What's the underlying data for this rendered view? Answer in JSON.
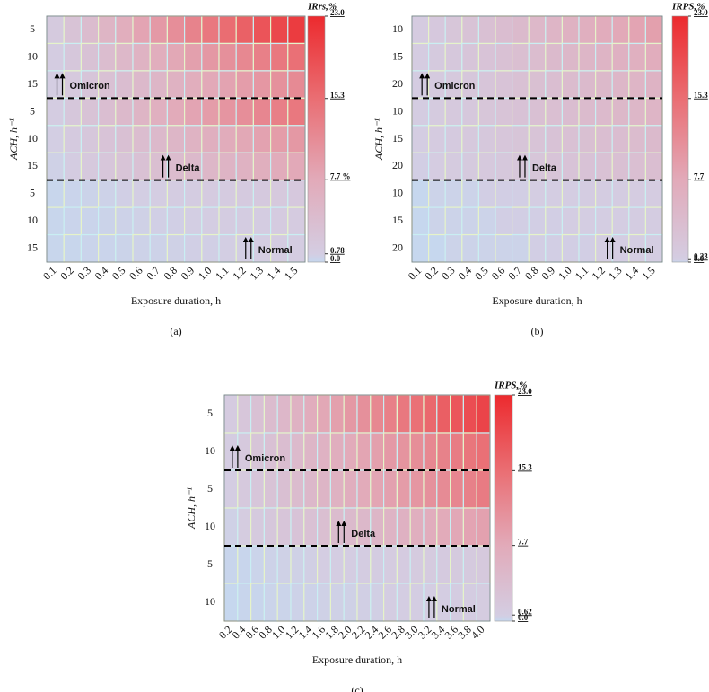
{
  "chart_data": [
    {
      "type": "heatmap",
      "label": "(a)",
      "x_label": "Exposure duration, h",
      "y_label": "ACH, h⁻¹",
      "colorbar_title": "IRrs,%",
      "columns": [
        "0.1",
        "0.2",
        "0.3",
        "0.4",
        "0.5",
        "0.6",
        "0.7",
        "0.8",
        "0.9",
        "1.0",
        "1.1",
        "1.2",
        "1.3",
        "1.4",
        "1.5"
      ],
      "rows": [
        "5",
        "10",
        "15",
        "5",
        "10",
        "15",
        "5",
        "10",
        "15"
      ],
      "annotations": [
        "Omicron",
        "Delta",
        "Normal"
      ],
      "values": [
        [
          1.4,
          2.8,
          4.2,
          5.6,
          7.0,
          8.4,
          9.8,
          11.2,
          12.6,
          14.0,
          15.4,
          16.8,
          18.2,
          19.6,
          21.0
        ],
        [
          1.0,
          2.0,
          3.0,
          4.0,
          5.0,
          6.0,
          7.0,
          8.0,
          9.0,
          10.0,
          11.0,
          12.0,
          13.0,
          14.0,
          15.0
        ],
        [
          0.8,
          1.6,
          2.3,
          3.1,
          3.9,
          4.7,
          5.4,
          6.2,
          7.0,
          7.8,
          8.6,
          9.3,
          10.1,
          10.9,
          11.7
        ],
        [
          0.9,
          1.9,
          2.8,
          3.7,
          4.7,
          5.6,
          6.6,
          7.5,
          8.4,
          9.4,
          10.3,
          11.2,
          12.2,
          13.1,
          14.0
        ],
        [
          0.7,
          1.3,
          2.0,
          2.7,
          3.3,
          4.0,
          4.7,
          5.4,
          6.0,
          6.7,
          7.4,
          8.0,
          8.7,
          9.4,
          10.0
        ],
        [
          0.5,
          1.0,
          1.6,
          2.1,
          2.6,
          3.1,
          3.6,
          4.2,
          4.7,
          5.2,
          5.7,
          6.2,
          6.8,
          7.3,
          7.8
        ],
        [
          0.1,
          0.2,
          0.3,
          0.4,
          0.6,
          0.7,
          0.8,
          0.9,
          1.0,
          1.1,
          1.2,
          1.3,
          1.5,
          1.6,
          1.7
        ],
        [
          0.1,
          0.2,
          0.2,
          0.3,
          0.4,
          0.5,
          0.6,
          0.6,
          0.7,
          0.8,
          0.9,
          1.0,
          1.0,
          1.1,
          1.2
        ],
        [
          0.1,
          0.1,
          0.2,
          0.2,
          0.3,
          0.4,
          0.4,
          0.5,
          0.6,
          0.6,
          0.7,
          0.7,
          0.8,
          0.9,
          0.9
        ]
      ],
      "vlim": [
        0,
        23
      ],
      "vticks": [
        {
          "value": 0,
          "label": "0.0"
        },
        0.78,
        {
          "value": 7.7,
          "label": "7.7 %"
        },
        15.3,
        {
          "value": 23,
          "label": "23.0"
        }
      ],
      "colors": [
        "#c6d7ee",
        "#d4cde2",
        "#e2aab9",
        "#ea6e73",
        "#ec2a2e"
      ]
    },
    {
      "type": "heatmap",
      "label": "(b)",
      "x_label": "Exposure duration, h",
      "y_label": "ACH, h⁻¹",
      "colorbar_title": "IRPS,%",
      "columns": [
        "0.1",
        "0.2",
        "0.3",
        "0.4",
        "0.5",
        "0.6",
        "0.7",
        "0.8",
        "0.9",
        "1.0",
        "1.1",
        "1.2",
        "1.3",
        "1.4",
        "1.5"
      ],
      "rows": [
        "10",
        "15",
        "20",
        "10",
        "15",
        "20",
        "10",
        "15",
        "20"
      ],
      "annotations": [
        "Omicron",
        "Delta",
        "Normal"
      ],
      "values": [
        [
          0.6,
          1.2,
          1.8,
          2.4,
          3.0,
          3.6,
          4.2,
          4.8,
          5.4,
          6.0,
          6.6,
          7.2,
          7.8,
          8.4,
          9.0
        ],
        [
          0.5,
          0.9,
          1.4,
          1.9,
          2.3,
          2.8,
          3.3,
          3.7,
          4.2,
          4.7,
          5.1,
          5.6,
          6.1,
          6.5,
          7.0
        ],
        [
          0.4,
          0.8,
          1.1,
          1.5,
          1.9,
          2.3,
          2.7,
          3.1,
          3.4,
          3.8,
          4.2,
          4.6,
          5.0,
          5.3,
          5.7
        ],
        [
          0.4,
          0.7,
          1.1,
          1.4,
          1.8,
          2.2,
          2.5,
          2.9,
          3.2,
          3.6,
          4.0,
          4.3,
          4.7,
          5.0,
          5.4
        ],
        [
          0.3,
          0.6,
          0.8,
          1.1,
          1.4,
          1.7,
          2.0,
          2.2,
          2.5,
          2.8,
          3.1,
          3.4,
          3.6,
          3.9,
          4.2
        ],
        [
          0.2,
          0.5,
          0.7,
          0.9,
          1.1,
          1.4,
          1.6,
          1.8,
          2.1,
          2.3,
          2.5,
          2.7,
          3.0,
          3.2,
          3.4
        ],
        [
          0.0,
          0.1,
          0.1,
          0.1,
          0.2,
          0.2,
          0.2,
          0.3,
          0.3,
          0.3,
          0.4,
          0.4,
          0.4,
          0.5,
          0.5
        ],
        [
          0.0,
          0.1,
          0.1,
          0.1,
          0.1,
          0.2,
          0.2,
          0.2,
          0.2,
          0.3,
          0.3,
          0.3,
          0.3,
          0.4,
          0.4
        ],
        [
          0.0,
          0.0,
          0.1,
          0.1,
          0.1,
          0.1,
          0.1,
          0.2,
          0.2,
          0.2,
          0.2,
          0.3,
          0.3,
          0.3,
          0.3
        ]
      ],
      "vlim": [
        0,
        23
      ],
      "vticks": [
        {
          "value": 0,
          "label": "0.0"
        },
        0.23,
        7.7,
        15.3,
        {
          "value": 23,
          "label": "23.0"
        }
      ],
      "colors": [
        "#c6d7ee",
        "#d4cde2",
        "#e2aab9",
        "#ea6e73",
        "#ec2a2e"
      ]
    },
    {
      "type": "heatmap",
      "label": "(c)",
      "x_label": "Exposure duration, h",
      "y_label": "ACH, h⁻¹",
      "colorbar_title": "IRPS,%",
      "columns": [
        "0.2",
        "0.4",
        "0.6",
        "0.8",
        "1.0",
        "1.2",
        "1.4",
        "1.6",
        "1.8",
        "2.0",
        "2.2",
        "2.4",
        "2.6",
        "2.8",
        "3.0",
        "3.2",
        "3.4",
        "3.6",
        "3.8",
        "4.0"
      ],
      "rows": [
        "5",
        "10",
        "5",
        "10",
        "5",
        "10"
      ],
      "annotations": [
        "Omicron",
        "Delta",
        "Normal"
      ],
      "values": [
        [
          1,
          2,
          3,
          4,
          5,
          6,
          7,
          8,
          9,
          10,
          11,
          12,
          13,
          14,
          15,
          16,
          17,
          18,
          19,
          20
        ],
        [
          0.8,
          1.5,
          2.3,
          3.0,
          3.8,
          4.5,
          5.3,
          6.0,
          6.8,
          7.5,
          8.3,
          9.0,
          9.8,
          10.5,
          11.3,
          12.0,
          12.8,
          13.5,
          14.3,
          15.0
        ],
        [
          0.7,
          1.4,
          2.0,
          2.7,
          3.4,
          4.1,
          4.8,
          5.4,
          6.1,
          6.8,
          7.5,
          8.2,
          8.8,
          9.5,
          10.2,
          10.9,
          11.6,
          12.2,
          12.9,
          13.6
        ],
        [
          0.4,
          0.9,
          1.3,
          1.8,
          2.2,
          2.6,
          3.1,
          3.5,
          4.0,
          4.4,
          4.8,
          5.3,
          5.7,
          6.2,
          6.6,
          7.0,
          7.5,
          7.9,
          8.4,
          8.8
        ],
        [
          0.1,
          0.1,
          0.2,
          0.3,
          0.4,
          0.4,
          0.5,
          0.6,
          0.6,
          0.7,
          0.8,
          0.8,
          0.9,
          1.0,
          1.1,
          1.1,
          1.2,
          1.3,
          1.3,
          1.4
        ],
        [
          0.0,
          0.1,
          0.1,
          0.2,
          0.2,
          0.3,
          0.3,
          0.4,
          0.4,
          0.4,
          0.5,
          0.5,
          0.6,
          0.6,
          0.7,
          0.7,
          0.7,
          0.8,
          0.8,
          0.9
        ]
      ],
      "vlim": [
        0,
        23
      ],
      "vticks": [
        {
          "value": 0,
          "label": "0.0"
        },
        0.62,
        7.7,
        15.3,
        {
          "value": 23,
          "label": "23.0"
        }
      ],
      "colors": [
        "#c6d7ee",
        "#d4cde2",
        "#e2aab9",
        "#ea6e73",
        "#ec2a2e"
      ]
    }
  ]
}
